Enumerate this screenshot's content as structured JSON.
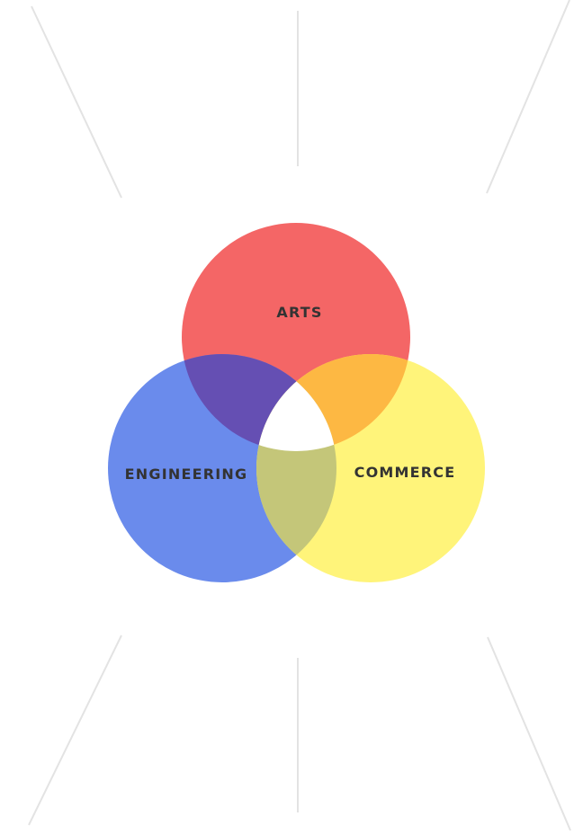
{
  "diagram": {
    "type": "venn",
    "sets": [
      {
        "key": "arts",
        "label": "ARTS",
        "color": "#f46666"
      },
      {
        "key": "engineering",
        "label": "ENGINEERING",
        "color": "#6a8bec"
      },
      {
        "key": "commerce",
        "label": "COMMERCE",
        "color": "#fff47a"
      }
    ],
    "overlaps": [
      {
        "sets": [
          "arts",
          "engineering"
        ],
        "color": "#654fb3"
      },
      {
        "sets": [
          "arts",
          "commerce"
        ],
        "color": "#fdb843"
      },
      {
        "sets": [
          "engineering",
          "commerce"
        ],
        "color": "#c4c679"
      },
      {
        "sets": [
          "arts",
          "engineering",
          "commerce"
        ],
        "color": "#ffffff"
      }
    ],
    "guide_line_color": "#e3e3e3"
  }
}
